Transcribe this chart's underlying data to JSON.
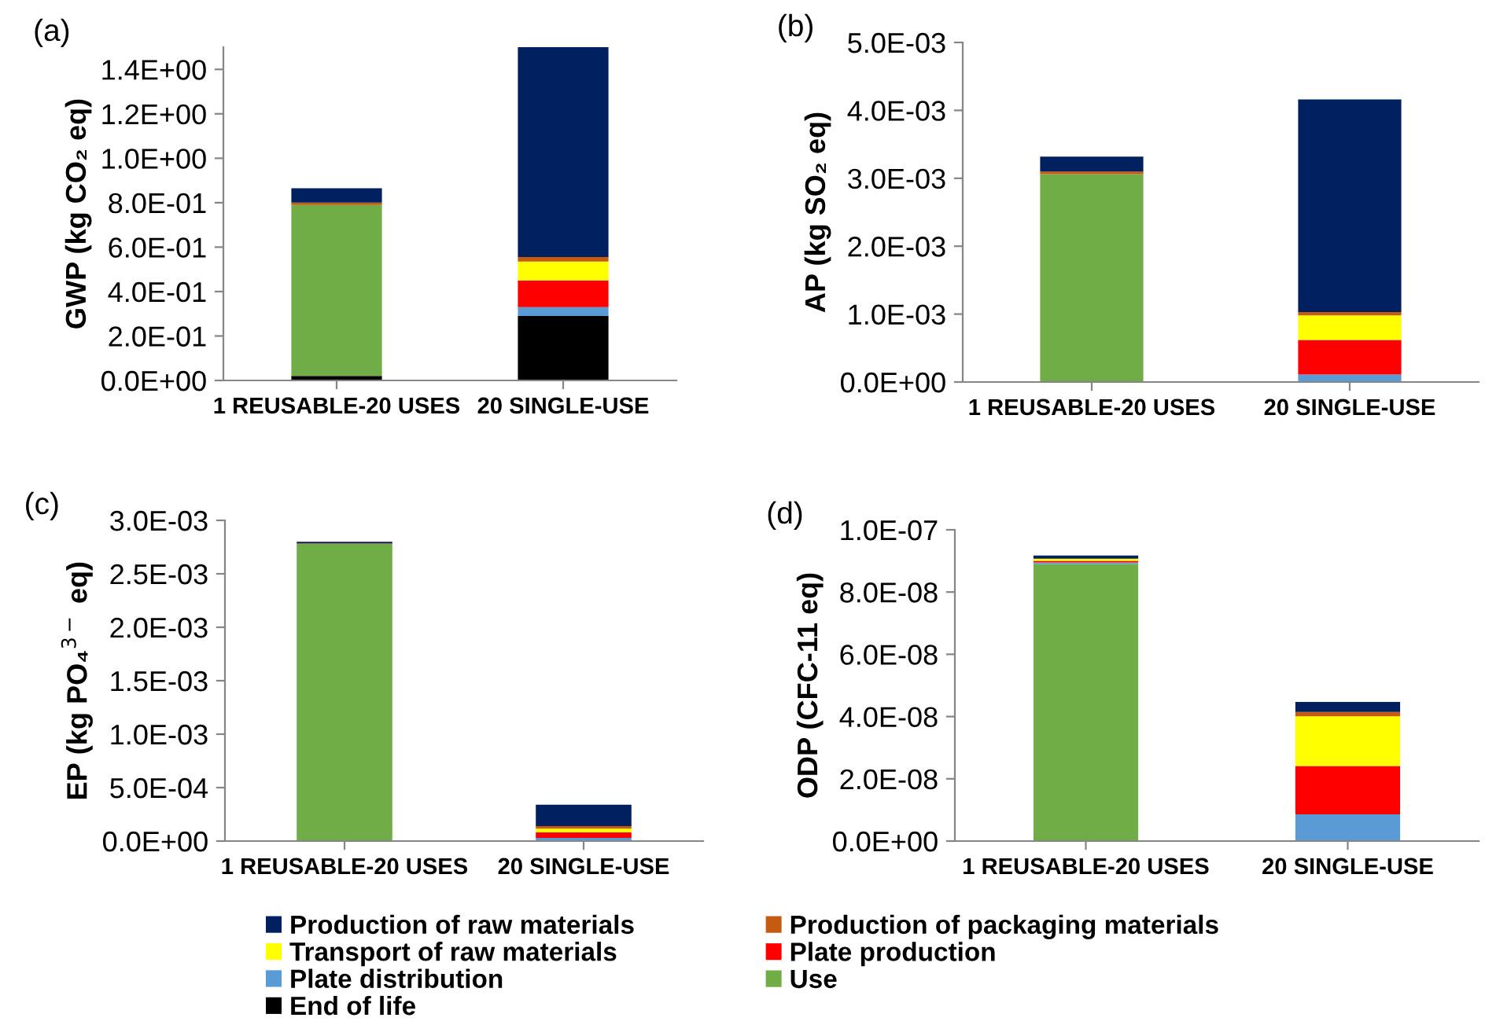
{
  "chart_data": [
    {
      "type": "bar",
      "stacked": true,
      "title": "(a)",
      "ylabel": "GWP (kg CO₂ eq)",
      "categories": [
        "1 REUSABLE-20 USES",
        "20 SINGLE-USE"
      ],
      "ylim": [
        0,
        1.5
      ],
      "yticks": [
        {
          "value": 0,
          "label": "0.0E+00"
        },
        {
          "value": 0.2,
          "label": "2.0E-01"
        },
        {
          "value": 0.4,
          "label": "4.0E-01"
        },
        {
          "value": 0.6,
          "label": "6.0E-01"
        },
        {
          "value": 0.8,
          "label": "8.0E-01"
        },
        {
          "value": 1.0,
          "label": "1.0E+00"
        },
        {
          "value": 1.2,
          "label": "1.2E+00"
        },
        {
          "value": 1.4,
          "label": "1.4E+00"
        }
      ],
      "legend": "bottom",
      "series": [
        {
          "name": "End of life",
          "color": "#000000",
          "values": [
            0.02,
            0.29
          ]
        },
        {
          "name": "Use",
          "color": "#70ad47",
          "values": [
            0.77,
            0
          ]
        },
        {
          "name": "Plate distribution",
          "color": "#5b9bd5",
          "values": [
            0,
            0.04
          ]
        },
        {
          "name": "Plate production",
          "color": "#ff0000",
          "values": [
            0,
            0.12
          ]
        },
        {
          "name": "Transport of raw materials",
          "color": "#ffff00",
          "values": [
            0,
            0.085
          ]
        },
        {
          "name": "Production of packaging materials",
          "color": "#c55a11",
          "values": [
            0.01,
            0.02
          ]
        },
        {
          "name": "Production of raw materials",
          "color": "#002060",
          "values": [
            0.065,
            0.945
          ]
        }
      ]
    },
    {
      "type": "bar",
      "stacked": true,
      "title": "(b)",
      "ylabel": "AP (kg SO₂ eq)",
      "categories": [
        "1 REUSABLE-20 USES",
        "20 SINGLE-USE"
      ],
      "ylim": [
        0,
        0.005
      ],
      "yticks": [
        {
          "value": 0,
          "label": "0.0E+00"
        },
        {
          "value": 0.001,
          "label": "1.0E-03"
        },
        {
          "value": 0.002,
          "label": "2.0E-03"
        },
        {
          "value": 0.003,
          "label": "3.0E-03"
        },
        {
          "value": 0.004,
          "label": "4.0E-03"
        },
        {
          "value": 0.005,
          "label": "5.0E-03"
        }
      ],
      "series": [
        {
          "color": "#000000",
          "values": [
            0,
            0
          ]
        },
        {
          "color": "#70ad47",
          "values": [
            0.00306,
            0
          ]
        },
        {
          "color": "#5b9bd5",
          "values": [
            0,
            0.00011
          ]
        },
        {
          "color": "#ff0000",
          "values": [
            0,
            0.00051
          ]
        },
        {
          "color": "#ffff00",
          "values": [
            0,
            0.00036
          ]
        },
        {
          "color": "#c55a11",
          "values": [
            4e-05,
            5e-05
          ]
        },
        {
          "color": "#002060",
          "values": [
            0.00022,
            0.00313
          ]
        }
      ]
    },
    {
      "type": "bar",
      "stacked": true,
      "title": "(c)",
      "ylabel": "EP (kg PO₄$^{3−}$ eq)",
      "categories": [
        "1 REUSABLE-20 USES",
        "20 SINGLE-USE"
      ],
      "ylim": [
        0,
        0.003
      ],
      "yticks": [
        {
          "value": 0,
          "label": "0.0E+00"
        },
        {
          "value": 0.0005,
          "label": "5.0E-04"
        },
        {
          "value": 0.001,
          "label": "1.0E-03"
        },
        {
          "value": 0.0015,
          "label": "1.5E-03"
        },
        {
          "value": 0.002,
          "label": "2.0E-03"
        },
        {
          "value": 0.0025,
          "label": "2.5E-03"
        },
        {
          "value": 0.003,
          "label": "3.0E-03"
        }
      ],
      "series": [
        {
          "color": "#000000",
          "values": [
            0,
            0
          ]
        },
        {
          "color": "#70ad47",
          "values": [
            0.00278,
            0
          ]
        },
        {
          "color": "#5b9bd5",
          "values": [
            0,
            3e-05
          ]
        },
        {
          "color": "#ff0000",
          "values": [
            0,
            5e-05
          ]
        },
        {
          "color": "#ffff00",
          "values": [
            0,
            3.5e-05
          ]
        },
        {
          "color": "#c55a11",
          "values": [
            5e-06,
            2.5e-05
          ]
        },
        {
          "color": "#002060",
          "values": [
            1.5e-05,
            0.0002
          ]
        }
      ]
    },
    {
      "type": "bar",
      "stacked": true,
      "title": "(d)",
      "ylabel": "ODP (CFC-11 eq)",
      "categories": [
        "1 REUSABLE-20 USES",
        "20 SINGLE-USE"
      ],
      "ylim": [
        0,
        1e-07
      ],
      "yticks": [
        {
          "value": 0,
          "label": "0.0E+00"
        },
        {
          "value": 2e-08,
          "label": "2.0E-08"
        },
        {
          "value": 4e-08,
          "label": "4.0E-08"
        },
        {
          "value": 6e-08,
          "label": "6.0E-08"
        },
        {
          "value": 8e-08,
          "label": "8.0E-08"
        },
        {
          "value": 1e-07,
          "label": "1.0E-07"
        }
      ],
      "series": [
        {
          "color": "#000000",
          "values": [
            0,
            0
          ]
        },
        {
          "color": "#70ad47",
          "values": [
            8.9e-08,
            0
          ]
        },
        {
          "color": "#5b9bd5",
          "values": [
            5e-10,
            8.6e-09
          ]
        },
        {
          "color": "#ff0000",
          "values": [
            5e-10,
            1.55e-08
          ]
        },
        {
          "color": "#ffff00",
          "values": [
            7e-10,
            1.6e-08
          ]
        },
        {
          "color": "#c55a11",
          "values": [
            0,
            1.4e-09
          ]
        },
        {
          "color": "#002060",
          "values": [
            1e-09,
            3.2e-09
          ]
        }
      ]
    }
  ]
}
